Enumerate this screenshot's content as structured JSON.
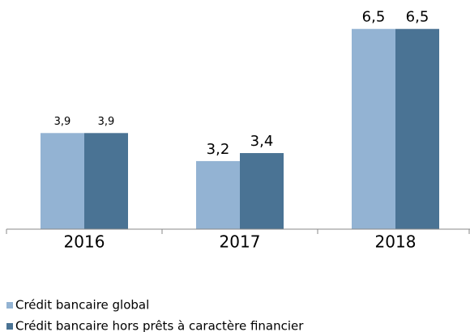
{
  "chart_data": {
    "type": "bar",
    "categories": [
      "2016",
      "2017",
      "2018"
    ],
    "series": [
      {
        "name": "Crédit bancaire global",
        "color": "#93b3d3",
        "values": [
          3.9,
          3.2,
          6.5
        ],
        "value_labels": [
          "3,9",
          "3,2",
          "6,5"
        ]
      },
      {
        "name": "Crédit bancaire hors prêts à caractère financier",
        "color": "#4a7394",
        "values": [
          3.9,
          3.4,
          6.5
        ],
        "value_labels": [
          "3,9",
          "3,4",
          "6,5"
        ]
      }
    ],
    "ylim": [
      1.5,
      7
    ]
  }
}
